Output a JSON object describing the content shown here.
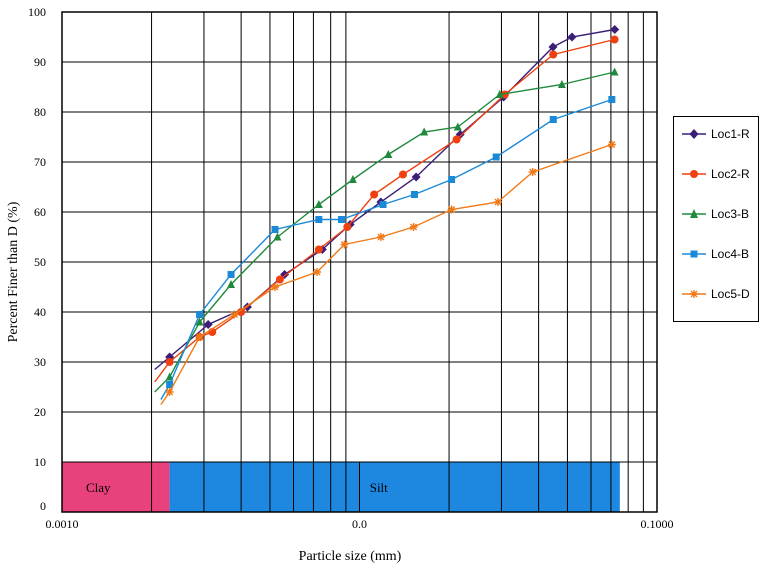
{
  "chart_data": {
    "type": "line",
    "title": "",
    "xlabel": "Particle size (mm)",
    "ylabel": "Percent Finer than D (%)",
    "x_scale": "log",
    "xlim": [
      0.001,
      0.1
    ],
    "ylim": [
      0,
      100
    ],
    "x_tick_labels": [
      "0.0010",
      "0.0",
      "0.1000"
    ],
    "y_ticks": [
      0,
      10,
      20,
      30,
      40,
      50,
      60,
      70,
      80,
      90,
      100
    ],
    "grid": true,
    "legend_position": "right",
    "bands": [
      {
        "label": "Clay",
        "x_range": [
          0.001,
          0.0023
        ],
        "color": "#e8417e"
      },
      {
        "label": "Silt",
        "x_range": [
          0.0023,
          0.075
        ],
        "color": "#1e88e0"
      }
    ],
    "series": [
      {
        "name": "Loc1-R",
        "color": "#3a1e78",
        "marker": "diamond",
        "x": [
          0.00205,
          0.0023,
          0.0031,
          0.0042,
          0.0056,
          0.0075,
          0.0093,
          0.0118,
          0.0155,
          0.0218,
          0.0305,
          0.0447,
          0.0518,
          0.0721
        ],
        "y": [
          28.5,
          31,
          37.5,
          41,
          47.5,
          52.5,
          57.5,
          62,
          67,
          75.5,
          83,
          93,
          95,
          96.5
        ]
      },
      {
        "name": "Loc2-R",
        "color": "#f04010",
        "marker": "circle",
        "x": [
          0.00205,
          0.0023,
          0.0029,
          0.0032,
          0.004,
          0.0054,
          0.0073,
          0.0091,
          0.0112,
          0.014,
          0.0212,
          0.0308,
          0.0448,
          0.072
        ],
        "y": [
          26,
          30,
          35,
          36,
          40,
          46.5,
          52.5,
          57,
          63.5,
          67.5,
          74.5,
          83.5,
          91.5,
          94.5
        ]
      },
      {
        "name": "Loc3-B",
        "color": "#1f8a3c",
        "marker": "triangle",
        "x": [
          0.00205,
          0.0023,
          0.0029,
          0.0037,
          0.0053,
          0.0073,
          0.0095,
          0.0125,
          0.0165,
          0.0214,
          0.0296,
          0.0479,
          0.072
        ],
        "y": [
          24,
          27,
          38,
          45.5,
          55,
          61.5,
          66.5,
          71.5,
          76,
          77,
          83.5,
          85.5,
          88
        ]
      },
      {
        "name": "Loc4-B",
        "color": "#1a8ad8",
        "marker": "square",
        "x": [
          0.00215,
          0.0023,
          0.0029,
          0.0037,
          0.0052,
          0.0073,
          0.0087,
          0.012,
          0.0153,
          0.0204,
          0.0288,
          0.0448,
          0.0705
        ],
        "y": [
          22.5,
          25.5,
          39.5,
          47.5,
          56.5,
          58.5,
          58.5,
          61.5,
          63.5,
          66.5,
          71,
          78.5,
          82.5
        ]
      },
      {
        "name": "Loc5-D",
        "color": "#f07a18",
        "marker": "star",
        "x": [
          0.00215,
          0.0023,
          0.0029,
          0.0038,
          0.0052,
          0.0072,
          0.0089,
          0.0118,
          0.0152,
          0.0204,
          0.0292,
          0.0382,
          0.0705
        ],
        "y": [
          21.5,
          24,
          35,
          39.5,
          45,
          48,
          53.5,
          55,
          57,
          60.5,
          62,
          68,
          73.5
        ]
      }
    ]
  }
}
